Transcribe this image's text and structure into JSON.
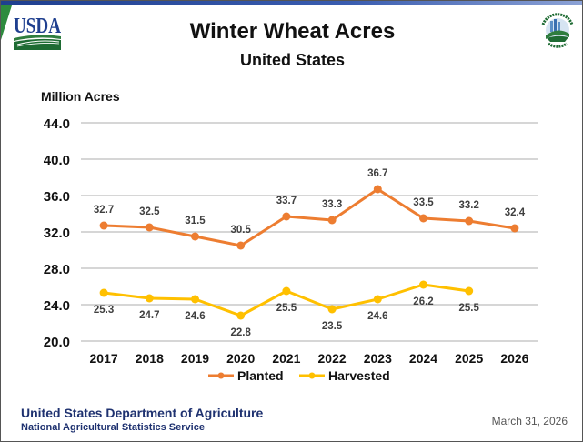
{
  "logos": {
    "left": "USDA",
    "right_ring_top": "AGRICULTURE",
    "right_ring_bottom": "COUNTS"
  },
  "colors": {
    "planted": "#ED7D31",
    "harvested": "#FFC000",
    "grid": "#C8C8C8",
    "footer": "#1F3270"
  },
  "footer": {
    "org": "United States Department of Agriculture",
    "sub": "National Agricultural Statistics Service",
    "date": "March 31, 2026"
  },
  "chart_data": {
    "type": "line",
    "title": "Winter Wheat Acres",
    "subtitle": "United States",
    "ylabel": "Million Acres",
    "xlabel": "",
    "ylim": [
      20.0,
      44.0
    ],
    "yticks": [
      "20.0",
      "24.0",
      "28.0",
      "32.0",
      "36.0",
      "40.0",
      "44.0"
    ],
    "grid": true,
    "legend_position": "bottom",
    "categories": [
      "2017",
      "2018",
      "2019",
      "2020",
      "2021",
      "2022",
      "2023",
      "2024",
      "2025",
      "2026"
    ],
    "series": [
      {
        "name": "Planted",
        "values": [
          32.7,
          32.5,
          31.5,
          30.5,
          33.7,
          33.3,
          36.7,
          33.5,
          33.2,
          32.4
        ],
        "labels": [
          "32.7",
          "32.5",
          "31.5",
          "30.5",
          "33.7",
          "33.3",
          "36.7",
          "33.5",
          "33.2",
          "32.4"
        ]
      },
      {
        "name": "Harvested",
        "values": [
          25.3,
          24.7,
          24.6,
          22.8,
          25.5,
          23.5,
          24.6,
          26.2,
          25.5,
          null
        ],
        "labels": [
          "25.3",
          "24.7",
          "24.6",
          "22.8",
          "25.5",
          "23.5",
          "24.6",
          "26.2",
          "25.5",
          null
        ]
      }
    ]
  }
}
